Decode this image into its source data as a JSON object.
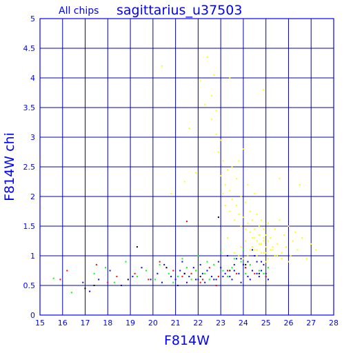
{
  "chart_data": {
    "type": "scatter",
    "subtitle": "All chips",
    "title": "sagittarius_u37503",
    "xlabel": "F814W",
    "ylabel": "F814W chi",
    "xlim": [
      15,
      28
    ],
    "ylim": [
      0,
      5
    ],
    "xticks": [
      "15",
      "16",
      "17",
      "18",
      "19",
      "20",
      "21",
      "22",
      "23",
      "24",
      "25",
      "26",
      "27",
      "28"
    ],
    "yticks": [
      "0",
      "0.5",
      "1",
      "1.5",
      "2",
      "2.5",
      "3",
      "3.5",
      "4",
      "4.5",
      "5"
    ],
    "grid": true,
    "colors": {
      "axis": "#0000ff",
      "grid": "#0000aa",
      "text": "#0000ff"
    },
    "series": [
      {
        "color": "#ffff00",
        "x": [
          20.4,
          20.8,
          21.4,
          21.6,
          21.9,
          22.1,
          22.3,
          22.4,
          22.6,
          22.7,
          22.8,
          22.9,
          23.0,
          23.0,
          23.1,
          23.1,
          23.2,
          23.2,
          23.3,
          23.4,
          23.4,
          23.5,
          23.5,
          23.6,
          23.7,
          23.7,
          23.8,
          23.8,
          23.9,
          23.9,
          24.0,
          24.0,
          24.1,
          24.1,
          24.2,
          24.2,
          24.3,
          24.3,
          24.4,
          24.4,
          24.5,
          24.5,
          24.6,
          24.6,
          24.7,
          24.7,
          24.8,
          24.8,
          24.9,
          24.9,
          25.0,
          25.0,
          25.1,
          25.1,
          25.2,
          25.3,
          25.4,
          25.5,
          25.6,
          25.7,
          25.8,
          25.9,
          26.0,
          26.1,
          26.2,
          26.3,
          26.4,
          26.6,
          26.8,
          27.0,
          27.2,
          23.6,
          23.9,
          24.2,
          24.5,
          24.7,
          24.9,
          25.1,
          25.3,
          25.5,
          24.0,
          24.3,
          24.6,
          24.8,
          25.0,
          25.2,
          23.8,
          24.1,
          24.4,
          24.6,
          24.8,
          25.0,
          25.4,
          25.7,
          26.0,
          24.2,
          24.5,
          24.7,
          24.9,
          23.3,
          22.8,
          22.6,
          23.4,
          24.9,
          25.6,
          26.5
        ],
        "y": [
          4.2,
          2.05,
          2.25,
          3.15,
          2.4,
          3.95,
          3.55,
          4.35,
          3.3,
          4.05,
          3.05,
          2.75,
          2.95,
          2.35,
          2.6,
          2.05,
          2.2,
          1.85,
          2.45,
          2.1,
          1.75,
          1.95,
          2.5,
          1.6,
          2.3,
          1.85,
          1.7,
          2.6,
          1.5,
          2.0,
          1.65,
          2.8,
          1.45,
          1.9,
          1.55,
          2.2,
          1.4,
          1.75,
          1.3,
          1.6,
          1.45,
          2.05,
          1.25,
          1.7,
          1.35,
          1.5,
          1.2,
          1.6,
          1.3,
          1.45,
          1.15,
          1.35,
          1.25,
          1.55,
          1.3,
          1.1,
          1.45,
          1.2,
          1.6,
          1.05,
          1.35,
          1.15,
          1.5,
          1.0,
          1.25,
          1.4,
          1.1,
          1.3,
          0.95,
          1.2,
          1.1,
          1.05,
          1.15,
          1.0,
          1.1,
          1.2,
          1.05,
          0.95,
          1.15,
          1.0,
          0.95,
          1.1,
          1.0,
          1.05,
          0.9,
          1.1,
          1.0,
          1.25,
          1.15,
          1.1,
          1.2,
          1.05,
          1.0,
          0.95,
          0.9,
          1.0,
          1.3,
          1.35,
          1.25,
          1.3,
          3.45,
          3.7,
          4.0,
          3.8,
          2.3,
          2.2
        ]
      },
      {
        "color": "#0000ff",
        "x": [
          16.9,
          17.2,
          17.6,
          18.1,
          18.6,
          19.1,
          19.5,
          19.9,
          20.2,
          20.4,
          20.6,
          20.8,
          21.0,
          21.2,
          21.4,
          21.6,
          21.8,
          22.0,
          22.2,
          22.4,
          22.6,
          22.8,
          23.0,
          23.2,
          23.4,
          23.6,
          23.8,
          24.0,
          24.2,
          24.4,
          24.6,
          24.8,
          25.0,
          21.1,
          21.5,
          21.9,
          22.3,
          22.7,
          23.1,
          23.5,
          23.9,
          24.3,
          24.7,
          25.1,
          20.5,
          21.3,
          22.1,
          22.9,
          23.7,
          24.5,
          24.1,
          24.4,
          24.6,
          24.8,
          24.9,
          25.0,
          23.3,
          23.6,
          23.9,
          24.2
        ],
        "y": [
          0.55,
          0.4,
          0.6,
          0.75,
          0.5,
          0.65,
          0.8,
          0.6,
          0.7,
          0.55,
          0.8,
          0.65,
          0.6,
          0.75,
          0.7,
          0.65,
          0.8,
          0.6,
          0.7,
          0.75,
          0.65,
          0.6,
          0.8,
          0.7,
          0.65,
          0.75,
          0.7,
          0.85,
          0.65,
          0.75,
          0.7,
          0.9,
          0.65,
          0.5,
          0.55,
          0.6,
          0.55,
          0.6,
          0.65,
          0.6,
          0.55,
          0.6,
          0.65,
          0.6,
          0.85,
          0.9,
          0.85,
          0.9,
          0.95,
          1.0,
          0.8,
          1.1,
          0.9,
          0.75,
          0.85,
          0.7,
          1.0,
          0.85,
          0.95,
          0.9
        ]
      },
      {
        "color": "#00ff00",
        "x": [
          15.6,
          16.4,
          17.4,
          17.9,
          18.3,
          18.8,
          19.3,
          19.7,
          20.1,
          20.3,
          20.7,
          21.1,
          21.5,
          21.9,
          22.3,
          22.7,
          23.1,
          23.5,
          23.9,
          24.3,
          24.7,
          25.1,
          20.9,
          21.7,
          22.5,
          23.3,
          24.1,
          24.9,
          22.0,
          23.0,
          24.0,
          21.3,
          22.4,
          23.6
        ],
        "y": [
          0.62,
          0.38,
          0.7,
          0.8,
          0.55,
          0.9,
          0.65,
          0.75,
          0.6,
          0.85,
          0.7,
          0.65,
          0.8,
          0.75,
          0.7,
          0.85,
          0.75,
          0.8,
          0.9,
          0.85,
          0.75,
          0.8,
          0.55,
          0.6,
          0.6,
          0.65,
          0.7,
          0.7,
          1.0,
          1.05,
          1.1,
          0.95,
          0.9,
          0.95
        ]
      },
      {
        "color": "#ff0000",
        "x": [
          15.9,
          16.2,
          17.5,
          18.0,
          18.4,
          19.2,
          19.8,
          20.3,
          20.9,
          21.3,
          21.7,
          22.1,
          22.5,
          22.9,
          23.3,
          23.7,
          24.1,
          24.5,
          25.0,
          21.5,
          22.2,
          22.8
        ],
        "y": [
          0.6,
          0.75,
          0.85,
          0.55,
          0.65,
          0.7,
          0.6,
          0.9,
          0.75,
          0.65,
          0.7,
          0.55,
          0.8,
          0.65,
          0.75,
          0.7,
          0.8,
          0.7,
          0.65,
          1.58,
          0.6,
          0.5
        ]
      },
      {
        "color": "#000000",
        "x": [
          17.0,
          17.4,
          18.9,
          19.3,
          20.6,
          21.4,
          22.1,
          22.9,
          23.4,
          24.1,
          24.7
        ],
        "y": [
          0.45,
          0.5,
          0.6,
          1.15,
          0.8,
          0.7,
          0.65,
          1.65,
          0.75,
          0.85,
          0.7
        ]
      }
    ]
  }
}
